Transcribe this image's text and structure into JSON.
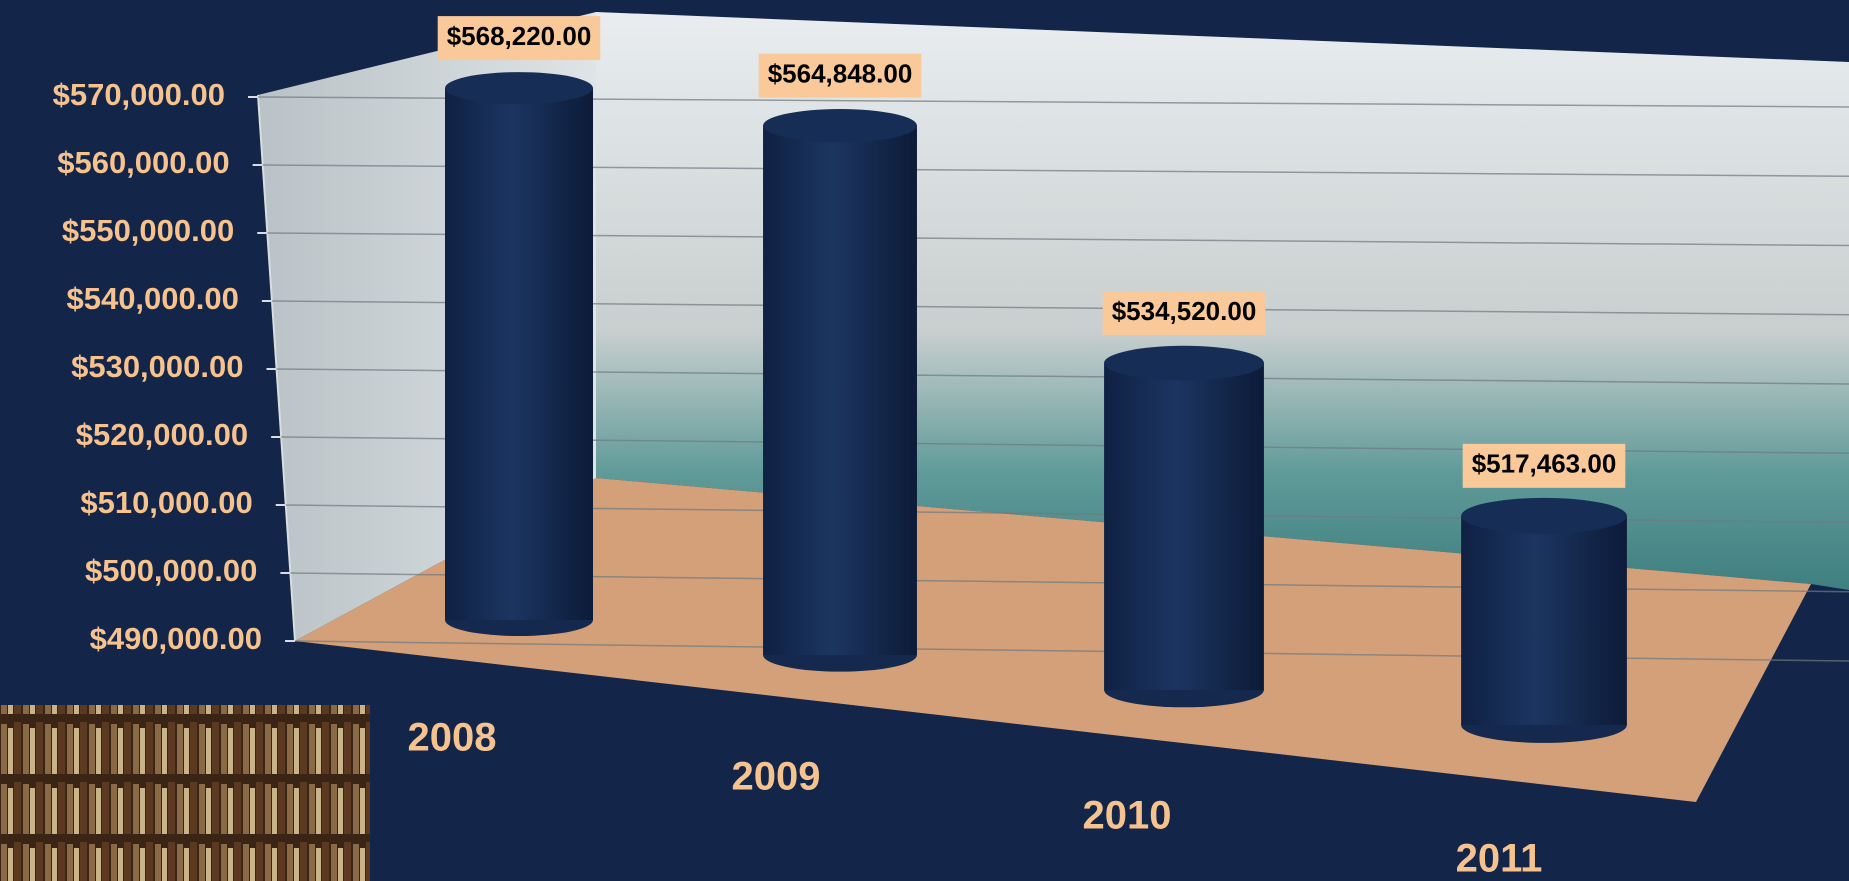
{
  "chart_data": {
    "type": "bar",
    "categories": [
      "2008",
      "2009",
      "2010",
      "2011"
    ],
    "values": [
      568220,
      564848,
      534520,
      517463
    ],
    "value_labels": [
      "$568,220.00",
      "$564,848.00",
      "$534,520.00",
      "$517,463.00"
    ],
    "color": "#14294d",
    "ylim": [
      490000,
      570000
    ],
    "yticks": [
      {
        "value": 490000,
        "label": "$490,000.00"
      },
      {
        "value": 500000,
        "label": "$500,000.00"
      },
      {
        "value": 510000,
        "label": "$510,000.00"
      },
      {
        "value": 520000,
        "label": "$520,000.00"
      },
      {
        "value": 530000,
        "label": "$530,000.00"
      },
      {
        "value": 540000,
        "label": "$540,000.00"
      },
      {
        "value": 550000,
        "label": "$550,000.00"
      },
      {
        "value": 560000,
        "label": "$560,000.00"
      },
      {
        "value": 570000,
        "label": "$570,000.00"
      }
    ],
    "grid": true
  }
}
